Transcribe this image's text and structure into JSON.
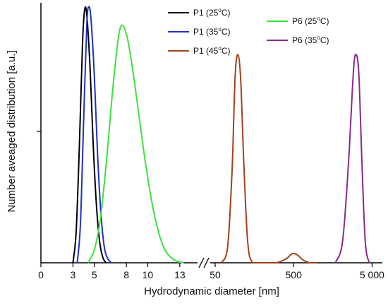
{
  "chart_data": {
    "type": "line",
    "xlabel": "Hydrodynamic diameter [nm]",
    "ylabel": "Number aveaged distribution [a.u.]",
    "axis_break": true,
    "grid": false,
    "legend_placement": "top",
    "x_ticks_left": {
      "values": [
        0,
        3,
        5,
        8,
        10,
        13
      ],
      "labels": [
        "0",
        "3",
        "5",
        "8",
        "10",
        "13"
      ],
      "range": [
        0,
        14
      ]
    },
    "x_ticks_right": {
      "scale": "log",
      "values": [
        50,
        500,
        5000
      ],
      "labels": [
        "50",
        "500",
        "5 000"
      ],
      "range": [
        50,
        5500
      ]
    },
    "ylim": [
      0,
      1.0
    ],
    "series": [
      {
        "name": "P1 (25°C)",
        "label_main": "P1 (25",
        "label_sup": "o",
        "label_tail": "C)",
        "color": "#000000",
        "axis": "left",
        "x": [
          3.0,
          3.3,
          3.6,
          3.9,
          4.1,
          4.3,
          4.6,
          4.9,
          5.2,
          5.5,
          5.8,
          6.1
        ],
        "y": [
          0.0,
          0.12,
          0.45,
          0.85,
          0.975,
          0.95,
          0.75,
          0.45,
          0.22,
          0.08,
          0.02,
          0.0
        ]
      },
      {
        "name": "P1 (35°C)",
        "label_main": "P1 (35",
        "label_sup": "o",
        "label_tail": "C)",
        "color": "#1f2fd0",
        "axis": "left",
        "x": [
          3.4,
          3.7,
          4.0,
          4.3,
          4.5,
          4.7,
          5.0,
          5.3,
          5.6,
          5.9,
          6.2,
          6.6
        ],
        "y": [
          0.0,
          0.15,
          0.55,
          0.92,
          0.985,
          0.93,
          0.72,
          0.42,
          0.2,
          0.07,
          0.02,
          0.0
        ]
      },
      {
        "name": "P6 (25°C)",
        "label_main": "P6 (25",
        "label_sup": "o",
        "label_tail": "C)",
        "color": "#3ee03e",
        "axis": "left",
        "x": [
          4.4,
          5.0,
          5.6,
          6.2,
          6.8,
          7.4,
          8.0,
          8.6,
          9.2,
          9.8,
          10.4,
          11.0,
          11.6,
          12.2,
          12.8,
          13.4
        ],
        "y": [
          0.0,
          0.05,
          0.18,
          0.42,
          0.7,
          0.9,
          0.88,
          0.74,
          0.56,
          0.38,
          0.23,
          0.12,
          0.05,
          0.02,
          0.005,
          0.0
        ]
      },
      {
        "name": "P1 (45°C)",
        "label_main": "P1 (45",
        "label_sup": "o",
        "label_tail": "C)",
        "color": "#a1421c",
        "axis": "right",
        "x": [
          60,
          72,
          82,
          90,
          98,
          106,
          116,
          130,
          150,
          200,
          300,
          400,
          480,
          560,
          650,
          800,
          1000
        ],
        "y": [
          0.0,
          0.06,
          0.35,
          0.72,
          0.8,
          0.7,
          0.38,
          0.08,
          0.0,
          0.0,
          0.0,
          0.015,
          0.035,
          0.03,
          0.012,
          0.0,
          0.0
        ]
      },
      {
        "name": "P6 (35°C)",
        "label_main": "P6 (35",
        "label_sup": "o",
        "label_tail": "C)",
        "color": "#8a2a8a",
        "axis": "right",
        "x": [
          1700,
          2100,
          2500,
          2900,
          3150,
          3400,
          3700,
          4100,
          4600
        ],
        "y": [
          0.0,
          0.08,
          0.38,
          0.74,
          0.8,
          0.72,
          0.4,
          0.08,
          0.0
        ]
      }
    ]
  }
}
